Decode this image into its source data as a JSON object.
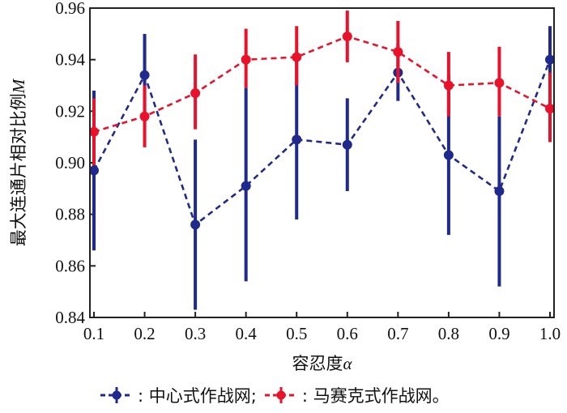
{
  "chart_data": {
    "type": "line",
    "x": [
      0.1,
      0.2,
      0.3,
      0.4,
      0.5,
      0.6,
      0.7,
      0.8,
      0.9,
      1.0
    ],
    "series": [
      {
        "name": ": 中心式作战网;",
        "color": "#1f2a8c",
        "values": [
          0.897,
          0.934,
          0.876,
          0.891,
          0.909,
          0.907,
          0.935,
          0.903,
          0.889,
          0.94
        ],
        "err_low": [
          0.866,
          0.919,
          0.843,
          0.854,
          0.878,
          0.889,
          0.924,
          0.872,
          0.852,
          0.926
        ],
        "err_high": [
          0.928,
          0.95,
          0.909,
          0.929,
          0.941,
          0.925,
          0.946,
          0.934,
          0.918,
          0.953
        ]
      },
      {
        "name": ": 马赛克式作战网。",
        "color": "#e8132b",
        "values": [
          0.912,
          0.918,
          0.927,
          0.94,
          0.941,
          0.949,
          0.943,
          0.93,
          0.931,
          0.921
        ],
        "err_low": [
          0.899,
          0.906,
          0.913,
          0.929,
          0.93,
          0.939,
          0.931,
          0.918,
          0.918,
          0.908
        ],
        "err_high": [
          0.925,
          0.93,
          0.942,
          0.952,
          0.953,
          0.959,
          0.955,
          0.943,
          0.945,
          0.935
        ]
      }
    ],
    "xlabel": "容忍度",
    "xlabel_var": "α",
    "ylabel": "最大连通片相对比例",
    "ylabel_var": "M",
    "xlim": [
      0.1,
      1.0
    ],
    "ylim": [
      0.84,
      0.96
    ],
    "x_ticks": [
      "0.1",
      "0.2",
      "0.3",
      "0.4",
      "0.5",
      "0.6",
      "0.7",
      "0.8",
      "0.9",
      "1.0"
    ],
    "y_ticks": [
      "0.84",
      "0.86",
      "0.88",
      "0.90",
      "0.92",
      "0.94",
      "0.96"
    ],
    "grid": false,
    "legend_position": "bottom"
  }
}
